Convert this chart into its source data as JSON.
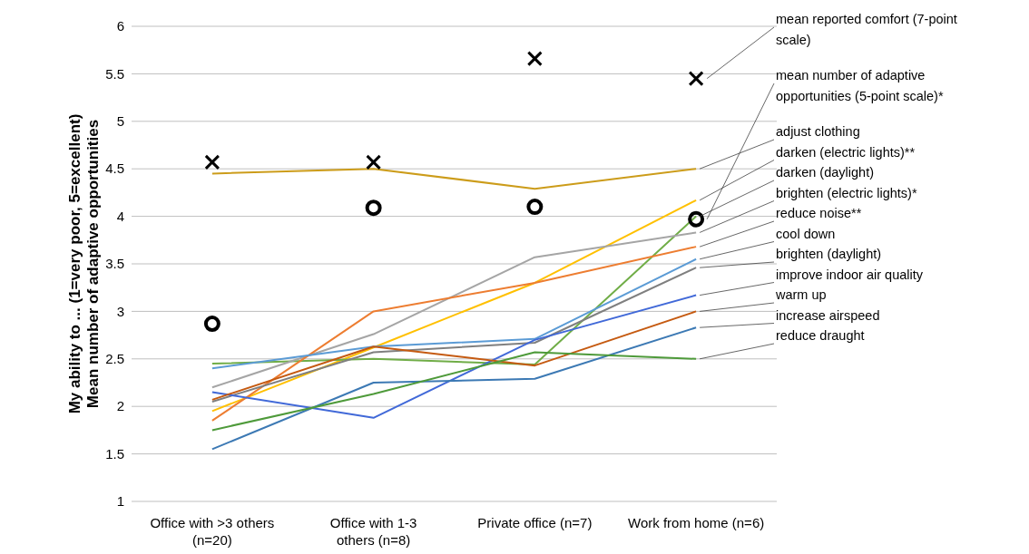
{
  "chart_data": {
    "type": "line",
    "ylabel": "My ability to ... (1=very poor, 5=excellent)\nMean number of adaptive opportunities",
    "categories": [
      "Office with >3 others (n=20)",
      "Office with 1-3 others (n=8)",
      "Private office (n=7)",
      "Work from home (n=6)"
    ],
    "ylim": [
      1,
      6
    ],
    "yticks": [
      1,
      1.5,
      2,
      2.5,
      3,
      3.5,
      4,
      4.5,
      5,
      5.5,
      6
    ],
    "grid": "y",
    "marker": "none",
    "series": [
      {
        "name": "mean reported comfort (7-point scale)",
        "type": "scatter",
        "marker": "cross",
        "color": "#000000",
        "values": [
          4.57,
          4.57,
          5.66,
          5.45
        ]
      },
      {
        "name": "mean number of adaptive opportunities (5-point scale)*",
        "type": "scatter",
        "marker": "circle",
        "color": "#000000",
        "values": [
          2.87,
          4.09,
          4.1,
          3.97
        ]
      },
      {
        "name": "adjust clothing",
        "color": "#cc9c1a",
        "values": [
          4.45,
          4.5,
          4.29,
          4.5
        ]
      },
      {
        "name": "darken (electric lights)**",
        "color": "#ffc000",
        "values": [
          1.95,
          2.62,
          3.3,
          4.17
        ]
      },
      {
        "name": "darken (daylight)",
        "color": "#70ad47",
        "values": [
          2.45,
          2.5,
          2.44,
          4.0
        ]
      },
      {
        "name": "brighten (electric lights)*",
        "color": "#a5a5a5",
        "values": [
          2.2,
          2.76,
          3.57,
          3.83
        ]
      },
      {
        "name": "reduce noise**",
        "color": "#ed7d31",
        "values": [
          1.85,
          3.0,
          3.3,
          3.68
        ]
      },
      {
        "name": "cool down",
        "color": "#5b9bd5",
        "values": [
          2.4,
          2.63,
          2.71,
          3.55
        ]
      },
      {
        "name": "brighten (daylight)",
        "color": "#7f7f7f",
        "values": [
          2.05,
          2.57,
          2.67,
          3.46
        ]
      },
      {
        "name": "improve indoor air quality",
        "color": "#4169d8",
        "values": [
          2.15,
          1.88,
          2.7,
          3.17
        ]
      },
      {
        "name": "warm up",
        "color": "#c55a11",
        "values": [
          2.07,
          2.63,
          2.43,
          3.0
        ]
      },
      {
        "name": "increase airspeed",
        "color": "#3c79b4",
        "values": [
          1.55,
          2.25,
          2.29,
          2.83
        ]
      },
      {
        "name": "reduce draught",
        "color": "#4e9a3a",
        "values": [
          1.75,
          2.13,
          2.57,
          2.5
        ]
      }
    ]
  }
}
